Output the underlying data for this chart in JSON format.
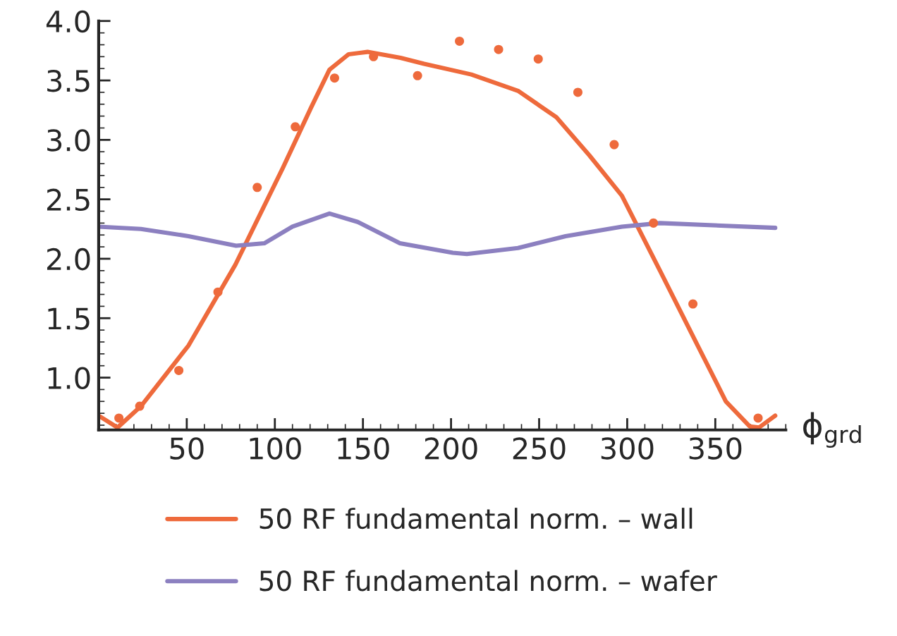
{
  "chart_data": {
    "type": "line",
    "xlabel": "ϕ$_{grd}$",
    "xlim": [
      0,
      390
    ],
    "ylim": [
      0.56,
      4.0
    ],
    "xticks": [
      50,
      100,
      150,
      200,
      250,
      300,
      350
    ],
    "yticks": [
      {
        "value": 1.0,
        "label": "1.0"
      },
      {
        "value": 1.5,
        "label": "1.5"
      },
      {
        "value": 2.0,
        "label": "2.0"
      },
      {
        "value": 2.5,
        "label": "2.5"
      },
      {
        "value": 3.0,
        "label": "3.0"
      },
      {
        "value": 3.5,
        "label": "3.5"
      },
      {
        "value": 4.0,
        "label": "4.0"
      }
    ],
    "grid": false,
    "legend": "bottom",
    "line_style": "solid",
    "series": [
      {
        "name": "50 RF fundamental norm. – wall",
        "color": "#ee6a3c",
        "x": [
          0,
          10.7,
          24,
          51,
          77.6,
          104.4,
          120.5,
          131,
          141.9,
          152.6,
          171.3,
          184.7,
          211.5,
          238.3,
          259.8,
          278.5,
          297,
          318.6,
          340,
          356,
          369.5,
          374.8,
          384
        ],
        "values": [
          0.68,
          0.58,
          0.76,
          1.27,
          1.95,
          2.76,
          3.27,
          3.59,
          3.72,
          3.74,
          3.69,
          3.64,
          3.55,
          3.41,
          3.19,
          2.87,
          2.53,
          1.9,
          1.27,
          0.8,
          0.59,
          0.58,
          0.68
        ]
      },
      {
        "name": "50 RF fundamental norm. – wafer",
        "color": "#8c80c0",
        "x": [
          0,
          24,
          51,
          78,
          94,
          110,
          131,
          147,
          171,
          201,
          209,
          238,
          265,
          297,
          318.6,
          384
        ],
        "values": [
          2.27,
          2.25,
          2.19,
          2.11,
          2.13,
          2.27,
          2.38,
          2.31,
          2.13,
          2.05,
          2.04,
          2.09,
          2.19,
          2.27,
          2.3,
          2.26
        ]
      },
      {
        "color": "#ee6a3c",
        "type": "scatter",
        "marker": "circle",
        "x": [
          11.5,
          23.3,
          45.5,
          67.7,
          90,
          111.6,
          133.9,
          156,
          181,
          204.8,
          227,
          249.5,
          272,
          292.6,
          314.9,
          337.3,
          374.3
        ],
        "values": [
          0.66,
          0.76,
          1.06,
          1.72,
          2.6,
          3.11,
          3.52,
          3.7,
          3.54,
          3.83,
          3.76,
          3.68,
          3.4,
          2.96,
          2.3,
          1.62,
          0.66
        ]
      }
    ]
  }
}
